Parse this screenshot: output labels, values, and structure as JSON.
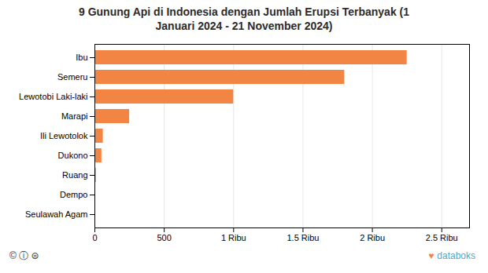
{
  "chart_data": {
    "type": "bar",
    "orientation": "horizontal",
    "title": "9 Gunung Api di Indonesia dengan Jumlah Erupsi Terbanyak (1\nJanuari 2024 - 21 November 2024)",
    "categories": [
      "Seulawah Agam",
      "Dempo",
      "Ruang",
      "Dukono",
      "Ili Lewotolok",
      "Marapi",
      "Lewotobi Laki-laki",
      "Semeru",
      "Ibu"
    ],
    "values": [
      3,
      5,
      10,
      50,
      60,
      250,
      1000,
      1800,
      2250
    ],
    "color": "#F28444",
    "xlim": [
      0,
      2700
    ],
    "xticks": [
      0,
      500,
      {
        "value": 1000,
        "label": "1 Ribu"
      },
      {
        "value": 1500,
        "label": "1.5 Ribu"
      },
      {
        "value": 2000,
        "label": "2 Ribu"
      },
      {
        "value": 2500,
        "label": "2.5 Ribu"
      }
    ],
    "grid": true,
    "annotations": [
      {
        "text": "© ⓘ ⊜"
      },
      {
        "text": "♥",
        "color": "#F28444"
      },
      {
        "text": "databoks",
        "color": "#4BACC6"
      }
    ]
  }
}
